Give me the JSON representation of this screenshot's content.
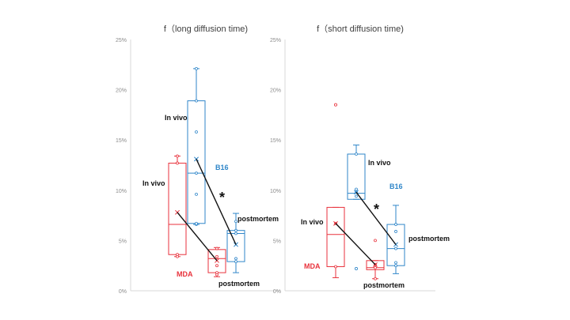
{
  "colors": {
    "mda": "#e8323c",
    "b16": "#2f86c9",
    "axis": "#d9d9d9",
    "tick": "#8c8c8c",
    "line": "#111111"
  },
  "chart_data": [
    {
      "type": "box",
      "title": "f（long diffusion time)",
      "ylim": [
        0,
        25
      ],
      "y_ticks": [
        "0%",
        "5%",
        "10%",
        "15%",
        "20%",
        "25%"
      ],
      "y_tick_values": [
        0,
        5,
        10,
        15,
        20,
        25
      ],
      "groups": [
        {
          "name": "MDA",
          "condition": "In vivo",
          "color": "mda",
          "min": 3.4,
          "q1": 3.6,
          "median": 6.6,
          "q3": 12.7,
          "max": 13.4,
          "mean": 7.8,
          "points": [
            3.4,
            3.6,
            12.7,
            13.4
          ]
        },
        {
          "name": "B16",
          "condition": "In vivo",
          "color": "b16",
          "min": 6.6,
          "q1": 6.7,
          "median": 11.7,
          "q3": 18.9,
          "max": 22.1,
          "mean": 13.1,
          "points": [
            6.6,
            6.7,
            9.6,
            11.7,
            15.8,
            18.9,
            22.1
          ]
        },
        {
          "name": "MDA",
          "condition": "postmortem",
          "color": "mda",
          "min": 1.4,
          "q1": 1.8,
          "median": 3.2,
          "q3": 4.1,
          "max": 4.3,
          "mean": 3.0,
          "points": [
            1.6,
            1.8,
            2.5,
            3.4,
            4.2
          ]
        },
        {
          "name": "B16",
          "condition": "postmortem",
          "color": "b16",
          "min": 1.8,
          "q1": 2.9,
          "median": 5.7,
          "q3": 6.0,
          "max": 7.7,
          "mean": 4.6,
          "points": [
            2.9,
            3.2,
            5.7,
            6.0,
            6.9
          ]
        }
      ],
      "connectors": [
        [
          0,
          2
        ],
        [
          1,
          3
        ]
      ],
      "labels": {
        "mda_in_vivo": "In vivo",
        "b16_in_vivo": "In vivo",
        "b16": "B16",
        "mda": "MDA",
        "b16_postmortem": "postmortem",
        "mda_postmortem": "postmortem",
        "significance": "*"
      }
    },
    {
      "type": "box",
      "title": "f（short diffusion time)",
      "ylim": [
        0,
        25
      ],
      "y_ticks": [
        "0%",
        "5%",
        "10%",
        "15%",
        "20%",
        "25%"
      ],
      "y_tick_values": [
        0,
        5,
        10,
        15,
        20,
        25
      ],
      "groups": [
        {
          "name": "MDA",
          "condition": "In vivo",
          "color": "mda",
          "min": 1.3,
          "q1": 2.4,
          "median": 5.6,
          "q3": 8.3,
          "max": 8.3,
          "mean": 6.7,
          "outliers": [
            18.5
          ],
          "points": [
            2.4,
            6.7
          ]
        },
        {
          "name": "B16",
          "condition": "In vivo",
          "color": "b16",
          "min": 9.1,
          "q1": 9.1,
          "median": 9.7,
          "q3": 13.6,
          "max": 14.5,
          "mean": 9.8,
          "outliers": [
            2.2
          ],
          "points": [
            9.4,
            9.8,
            10.1,
            13.6
          ]
        },
        {
          "name": "MDA",
          "condition": "postmortem",
          "color": "mda",
          "min": 1.2,
          "q1": 2.1,
          "median": 2.3,
          "q3": 3.0,
          "max": 3.0,
          "mean": 2.6,
          "points": [
            1.2,
            2.3,
            2.6,
            5.0
          ]
        },
        {
          "name": "B16",
          "condition": "postmortem",
          "color": "b16",
          "min": 1.7,
          "q1": 2.5,
          "median": 4.2,
          "q3": 6.6,
          "max": 8.5,
          "mean": 4.6,
          "points": [
            2.5,
            2.8,
            4.2,
            5.9,
            6.6
          ]
        }
      ],
      "connectors": [
        [
          0,
          2
        ],
        [
          1,
          3
        ]
      ],
      "labels": {
        "mda_in_vivo": "In vivo",
        "b16_in_vivo": "In vivo",
        "b16": "B16",
        "mda": "MDA",
        "b16_postmortem": "postmortem",
        "mda_postmortem": "postmortem",
        "significance": "*"
      }
    }
  ]
}
